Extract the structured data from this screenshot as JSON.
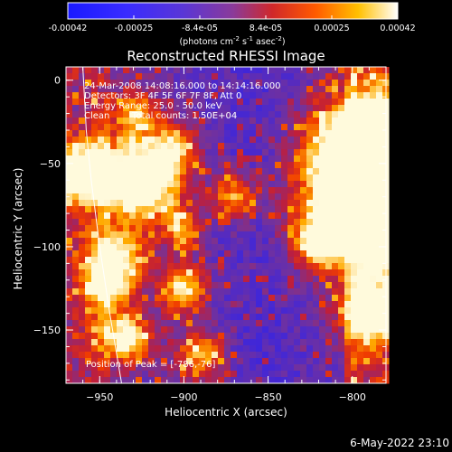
{
  "colorbar": {
    "tick_labels": [
      "-0.00042",
      "-0.00025",
      "-8.4e-05",
      "8.4e-05",
      "0.00025",
      "0.00042"
    ],
    "range": [
      -0.00042,
      0.00042
    ],
    "unit_prefix": "(photons cm",
    "unit_exp1": "-2",
    "unit_mid": " s",
    "unit_exp2": "-1",
    "unit_mid2": " asec",
    "unit_exp3": "-2",
    "unit_suffix": ")"
  },
  "chart_data": {
    "type": "heatmap",
    "title": "Reconstructed RHESSI Image",
    "xlabel": "Heliocentric X (arcsec)",
    "ylabel": "Heliocentric Y (arcsec)",
    "xlim": [
      -970,
      -780
    ],
    "ylim": [
      -182,
      8
    ],
    "x_ticks": [
      -950,
      -900,
      -850,
      -800
    ],
    "y_ticks": [
      0,
      -50,
      -100,
      -150
    ],
    "x_tick_labels": [
      "−950",
      "−900",
      "−850",
      "−800"
    ],
    "y_tick_labels": [
      "0",
      "−50",
      "−100",
      "−150"
    ],
    "colormap": "blue-purple-red-yellow-white",
    "annotations": {
      "time_range": "24-Mar-2008 14:08:16.000 to 14:14:16.000",
      "detectors": "Detectors: 3F 4F 5F 6F 7F 8F, Att 0",
      "energy_range": "Energy Range: 25.0 - 50.0 keV",
      "method": "Clean",
      "total_counts": "Total counts: 1.50E+04",
      "peak": "Position of Peak = [-786,-76]"
    },
    "peak_position": [
      -786,
      -76
    ],
    "limb_curve": [
      [
        -960,
        8
      ],
      [
        -958,
        -30
      ],
      [
        -955,
        -60
      ],
      [
        -950,
        -100
      ],
      [
        -944,
        -140
      ],
      [
        -937,
        -182
      ]
    ]
  },
  "footer": {
    "date": "6-May-2022 23:10"
  }
}
